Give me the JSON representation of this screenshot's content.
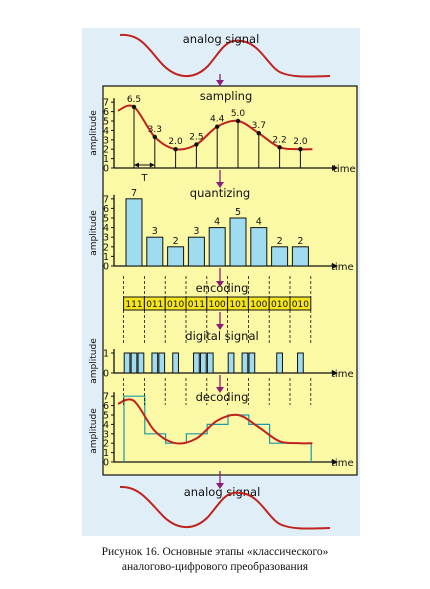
{
  "colors": {
    "panel_blue": "#dfeef7",
    "panel_yellow": "#fbf9a6",
    "signal": "#c0221e",
    "bar_fill": "#9fdcef",
    "arrow": "#8a1e78",
    "code_fill": "#f4e51c",
    "border": "#111111"
  },
  "top": {
    "label": "analog signal"
  },
  "bottom": {
    "label": "analog signal"
  },
  "sampling": {
    "title": "sampling",
    "ylabel": "amplitude",
    "xlabel": "time",
    "period_label": "T",
    "yticks": [
      "0",
      "1",
      "2",
      "3",
      "4",
      "5",
      "6",
      "7"
    ],
    "samples": [
      6.5,
      3.3,
      2.0,
      2.5,
      4.4,
      5.0,
      3.7,
      2.2,
      2.0
    ],
    "sample_labels": [
      "6.5",
      "3.3",
      "2.0",
      "2.5",
      "4.4",
      "5.0",
      "3.7",
      "2.2",
      "2.0"
    ]
  },
  "quantizing": {
    "title": "quantizing",
    "ylabel": "amplitude",
    "xlabel": "time",
    "yticks": [
      "0",
      "1",
      "2",
      "3",
      "4",
      "5",
      "6",
      "7"
    ],
    "levels": [
      7,
      3,
      2,
      3,
      4,
      5,
      4,
      2,
      2
    ],
    "level_labels": [
      "7",
      "3",
      "2",
      "3",
      "4",
      "5",
      "4",
      "2",
      "2"
    ]
  },
  "encoding": {
    "title": "encoding",
    "codes": [
      "111",
      "011",
      "010",
      "011",
      "100",
      "101",
      "100",
      "010",
      "010"
    ]
  },
  "digital": {
    "title": "digital signal",
    "ylabel": "amplitude",
    "xlabel": "time",
    "yticks": [
      "0",
      "1"
    ]
  },
  "decoding": {
    "title": "decoding",
    "ylabel": "amplitude",
    "xlabel": "time",
    "yticks": [
      "0",
      "1",
      "2",
      "3",
      "4",
      "5",
      "6",
      "7"
    ]
  },
  "caption": {
    "line1": "Рисунок 16. Основные этапы «классического»",
    "line2": "аналогово-цифрового преобразования"
  }
}
